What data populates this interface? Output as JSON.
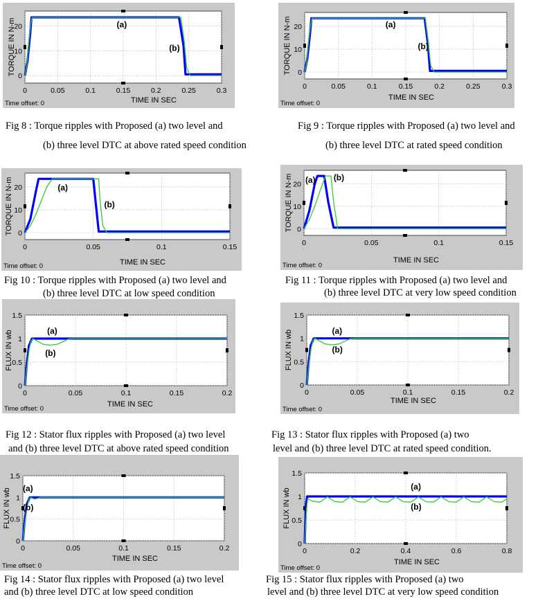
{
  "figures": [
    {
      "id": "fig8",
      "caption_lines": [
        "Fig  8 : Torque ripples with Proposed (a) two level and",
        "(b) three level DTC at  above rated speed condition"
      ],
      "time_offset": "Time offset:  0",
      "chart_data": {
        "type": "line",
        "xlabel": "TIME IN SEC",
        "ylabel": "TORQUE IN N-m",
        "xlim": [
          0,
          0.3
        ],
        "ylim": [
          -3,
          26
        ],
        "xticks": [
          0,
          0.05,
          0.1,
          0.15,
          0.2,
          0.25,
          0.3
        ],
        "xtick_labels": [
          "0",
          "0.05",
          "0.1",
          "0.15",
          "0.2",
          "0.25",
          "0.3"
        ],
        "yticks": [
          0,
          10,
          20
        ],
        "ytick_labels": [
          "0",
          "10",
          "20"
        ],
        "annotations": [
          {
            "text": "(a)",
            "x": 0.14,
            "y": 19.5
          },
          {
            "text": "(b)",
            "x": 0.22,
            "y": 10
          }
        ],
        "series": [
          {
            "label": "(a)",
            "color": "#0000ff",
            "x": [
              0,
              0.004,
              0.008,
              0.01,
              0.235,
              0.242,
              0.245,
              0.3
            ],
            "y": [
              0,
              6,
              17,
              23.5,
              23.5,
              12,
              0.5,
              0.5
            ]
          },
          {
            "label": "(b)",
            "color": "#33cc33",
            "x": [
              0,
              0.003,
              0.006,
              0.009,
              0.011,
              0.238,
              0.243,
              0.247,
              0.252,
              0.3
            ],
            "y": [
              0,
              4,
              14,
              21,
              23.5,
              23.5,
              14,
              3,
              0,
              0
            ]
          }
        ]
      }
    },
    {
      "id": "fig9",
      "caption_lines": [
        "Fig 9 : Torque ripples with Proposed (a) two level and",
        "(b) three level DTC at rated speed condition"
      ],
      "time_offset": "Time offset:  0",
      "chart_data": {
        "type": "line",
        "xlabel": "TIME IN SEC",
        "ylabel": "TORQUE IN N-m",
        "xlim": [
          0,
          0.3
        ],
        "ylim": [
          -3,
          26
        ],
        "xticks": [
          0,
          0.05,
          0.1,
          0.15,
          0.2,
          0.25,
          0.3
        ],
        "xtick_labels": [
          "0",
          "0.05",
          "0.1",
          "0.15",
          "0.2",
          "0.25",
          "0.3"
        ],
        "yticks": [
          0,
          10,
          20
        ],
        "ytick_labels": [
          "0",
          "10",
          "20"
        ],
        "annotations": [
          {
            "text": "(a)",
            "x": 0.12,
            "y": 19.5
          },
          {
            "text": "(b)",
            "x": 0.168,
            "y": 10
          }
        ],
        "series": [
          {
            "label": "(a)",
            "color": "#0000ff",
            "x": [
              0,
              0.004,
              0.008,
              0.01,
              0.178,
              0.183,
              0.186,
              0.3
            ],
            "y": [
              0,
              6,
              17,
              23.5,
              23.5,
              12,
              0.5,
              0.5
            ]
          },
          {
            "label": "(b)",
            "color": "#33cc33",
            "x": [
              0,
              0.003,
              0.006,
              0.009,
              0.011,
              0.179,
              0.183,
              0.187,
              0.192,
              0.3
            ],
            "y": [
              0,
              4,
              14,
              21,
              23.5,
              23.5,
              14,
              3,
              0,
              0
            ]
          }
        ]
      }
    },
    {
      "id": "fig10",
      "caption_lines": [
        "Fig 10 : Torque ripples with Proposed (a) two level and",
        "(b)  three level DTC at low speed condition"
      ],
      "time_offset": "Time offset:  0",
      "chart_data": {
        "type": "line",
        "xlabel": "TIME IN SEC",
        "ylabel": "TORQUE IN N-m",
        "xlim": [
          0,
          0.15
        ],
        "ylim": [
          -3,
          26
        ],
        "xticks": [
          0,
          0.05,
          0.1,
          0.15
        ],
        "xtick_labels": [
          "0",
          "0.05",
          "0.1",
          "0.15"
        ],
        "yticks": [
          0,
          10,
          20
        ],
        "ytick_labels": [
          "0",
          "10",
          "20"
        ],
        "annotations": [
          {
            "text": "(a)",
            "x": 0.024,
            "y": 18.5
          },
          {
            "text": "(b)",
            "x": 0.058,
            "y": 11
          }
        ],
        "series": [
          {
            "label": "(a)",
            "color": "#0000ff",
            "x": [
              0,
              0.004,
              0.008,
              0.01,
              0.05,
              0.052,
              0.054,
              0.15
            ],
            "y": [
              0,
              6,
              18,
              23.5,
              23.5,
              12,
              0.5,
              0.5
            ]
          },
          {
            "label": "(b)",
            "color": "#33cc33",
            "x": [
              0,
              0.004,
              0.008,
              0.012,
              0.016,
              0.02,
              0.054,
              0.055,
              0.057,
              0.06,
              0.15
            ],
            "y": [
              0,
              3,
              8,
              14,
              20,
              23.5,
              23.5,
              14,
              3,
              0,
              0
            ]
          }
        ]
      }
    },
    {
      "id": "fig11",
      "caption_lines": [
        "Fig 11 : Torque ripples with Proposed (a) two level and",
        "(b) three level DTC at very low speed condition"
      ],
      "time_offset": "Time offset:  0",
      "chart_data": {
        "type": "line",
        "xlabel": "TIME IN SEC",
        "ylabel": "TORQUE IN N-m",
        "xlim": [
          0,
          0.15
        ],
        "ylim": [
          -3,
          26
        ],
        "xticks": [
          0,
          0.05,
          0.1,
          0.15
        ],
        "xtick_labels": [
          "0",
          "0.05",
          "0.1",
          "0.15"
        ],
        "yticks": [
          0,
          10,
          20
        ],
        "ytick_labels": [
          "0",
          "10",
          "20"
        ],
        "annotations": [
          {
            "text": "(a)",
            "x": 0.001,
            "y": 20.5
          },
          {
            "text": "(b)",
            "x": 0.022,
            "y": 21.5
          }
        ],
        "series": [
          {
            "label": "(a)",
            "color": "#0000ff",
            "x": [
              0,
              0.004,
              0.008,
              0.01,
              0.015,
              0.018,
              0.022,
              0.15
            ],
            "y": [
              0,
              8,
              20,
              23.5,
              23.5,
              12,
              0.5,
              0.5
            ]
          },
          {
            "label": "(b)",
            "color": "#33cc33",
            "x": [
              0,
              0.004,
              0.008,
              0.012,
              0.016,
              0.02,
              0.022,
              0.025,
              0.15
            ],
            "y": [
              0,
              4,
              10,
              17,
              23.5,
              23.5,
              12,
              0,
              0
            ]
          }
        ]
      }
    },
    {
      "id": "fig12",
      "caption_lines": [
        "Fig 12 :  Stator flux ripples with Proposed (a) two level",
        "and (b) three level DTC at  above rated speed condition"
      ],
      "time_offset": "Time offset:  0",
      "chart_data": {
        "type": "line",
        "xlabel": "TIME IN SEC",
        "ylabel": "FLUX IN wb",
        "xlim": [
          0,
          0.2
        ],
        "ylim": [
          0,
          1.5
        ],
        "xticks": [
          0,
          0.05,
          0.1,
          0.15,
          0.2
        ],
        "xtick_labels": [
          "0",
          "0.05",
          "0.1",
          "0.15",
          "0.2"
        ],
        "yticks": [
          0,
          0.5,
          1,
          1.5
        ],
        "ytick_labels": [
          "0",
          "0.5",
          "1",
          "1.5"
        ],
        "annotations": [
          {
            "text": "(a)",
            "x": 0.022,
            "y": 1.1
          },
          {
            "text": "(b)",
            "x": 0.02,
            "y": 0.63
          }
        ],
        "series": [
          {
            "label": "(a)",
            "color": "#0000ff",
            "x": [
              0,
              0.002,
              0.004,
              0.007,
              0.04,
              0.2
            ],
            "y": [
              0,
              0.5,
              0.85,
              1.0,
              1.0,
              1.0
            ]
          },
          {
            "label": "(b)",
            "color": "#33cc33",
            "x": [
              0,
              0.002,
              0.004,
              0.006,
              0.008,
              0.012,
              0.018,
              0.025,
              0.032,
              0.038,
              0.043,
              0.047,
              0.2
            ],
            "y": [
              0,
              0.4,
              0.75,
              0.95,
              1.0,
              0.95,
              0.88,
              0.86,
              0.88,
              0.94,
              0.99,
              1.0,
              1.0
            ]
          }
        ]
      }
    },
    {
      "id": "fig13",
      "caption_lines": [
        "Fig 13 :  Stator flux ripples with Proposed (a) two",
        "level  and (b) three level DTC at   rated speed condition."
      ],
      "time_offset": "Time offset:  0",
      "chart_data": {
        "type": "line",
        "xlabel": "TIME IN SEC",
        "ylabel": "FLUX IN wb",
        "xlim": [
          0,
          0.2
        ],
        "ylim": [
          0,
          1.5
        ],
        "xticks": [
          0,
          0.05,
          0.1,
          0.15,
          0.2
        ],
        "xtick_labels": [
          "0",
          "0.05",
          "0.1",
          "0.15",
          "0.2"
        ],
        "yticks": [
          0,
          0.5,
          1,
          1.5
        ],
        "ytick_labels": [
          "0",
          "0.5",
          "1",
          "1.5"
        ],
        "annotations": [
          {
            "text": "(a)",
            "x": 0.025,
            "y": 1.1
          },
          {
            "text": "(b)",
            "x": 0.025,
            "y": 0.7
          }
        ],
        "series": [
          {
            "label": "(a)",
            "color": "#0000ff",
            "x": [
              0,
              0.002,
              0.004,
              0.007,
              0.05,
              0.2
            ],
            "y": [
              0,
              0.5,
              0.85,
              1.0,
              1.0,
              1.0
            ]
          },
          {
            "label": "(b)",
            "color": "#33cc33",
            "x": [
              0,
              0.002,
              0.004,
              0.006,
              0.008,
              0.012,
              0.018,
              0.025,
              0.032,
              0.038,
              0.043,
              0.047,
              0.2
            ],
            "y": [
              0,
              0.4,
              0.75,
              0.95,
              1.0,
              0.95,
              0.88,
              0.86,
              0.88,
              0.94,
              0.99,
              1.0,
              1.0
            ]
          }
        ]
      }
    },
    {
      "id": "fig14",
      "caption_lines": [
        "Fig 14 :  Stator  flux ripples with Proposed (a) two level",
        "and  (b) three level DTC at low speed condition"
      ],
      "time_offset": "Time offset:  0",
      "chart_data": {
        "type": "line",
        "xlabel": "TIME IN SEC",
        "ylabel": "FLUX IN wb",
        "xlim": [
          0,
          0.2
        ],
        "ylim": [
          0,
          1.5
        ],
        "xticks": [
          0,
          0.05,
          0.1,
          0.15,
          0.2
        ],
        "xtick_labels": [
          "0",
          "0.05",
          "0.1",
          "0.15",
          "0.2"
        ],
        "yticks": [
          0,
          0.5,
          1,
          1.5
        ],
        "ytick_labels": [
          "0",
          "0.5",
          "1",
          "1.5"
        ],
        "annotations": [
          {
            "text": "(a)",
            "x": 0.0,
            "y": 1.14
          },
          {
            "text": "(b)",
            "x": 0.0,
            "y": 0.7
          }
        ],
        "series": [
          {
            "label": "(a)",
            "color": "#0000ff",
            "x": [
              0,
              0.002,
              0.004,
              0.007,
              0.2
            ],
            "y": [
              0,
              0.5,
              0.85,
              1.0,
              1.0
            ]
          },
          {
            "label": "(b)",
            "color": "#33cc33",
            "x": [
              0,
              0.002,
              0.004,
              0.006,
              0.008,
              0.011,
              0.014,
              0.017,
              0.2
            ],
            "y": [
              0,
              0.4,
              0.75,
              0.95,
              1.0,
              0.96,
              0.97,
              1.0,
              1.0
            ]
          }
        ]
      }
    },
    {
      "id": "fig15",
      "caption_lines": [
        "Fig 15 :  Stator flux ripples with Proposed (a) two",
        "level  and  (b) three level DTC at very low speed  condition"
      ],
      "time_offset": "Time offset:  0",
      "chart_data": {
        "type": "line",
        "xlabel": "TIME IN SEC",
        "ylabel": "FLUX IN wb",
        "xlim": [
          0,
          0.8
        ],
        "ylim": [
          0,
          1.5
        ],
        "xticks": [
          0,
          0.2,
          0.4,
          0.6,
          0.8
        ],
        "xtick_labels": [
          "0",
          "0.2",
          "0.4",
          "0.6",
          "0.8"
        ],
        "yticks": [
          0,
          0.5,
          1,
          1.5
        ],
        "ytick_labels": [
          "0",
          "0.5",
          "1",
          "1.5"
        ],
        "annotations": [
          {
            "text": "(a)",
            "x": 0.42,
            "y": 1.15
          },
          {
            "text": "(b)",
            "x": 0.42,
            "y": 0.72
          }
        ],
        "series": [
          {
            "label": "(a)",
            "color": "#0000ff",
            "x": [
              0,
              0.003,
              0.006,
              0.01,
              0.8
            ],
            "y": [
              0,
              0.5,
              0.85,
              1.0,
              1.0
            ]
          },
          {
            "label": "(b)",
            "color": "#33cc33",
            "x": [
              0,
              0.004,
              0.008,
              0.012,
              0.03,
              0.06,
              0.09,
              0.12,
              0.15,
              0.18,
              0.21,
              0.24,
              0.27,
              0.3,
              0.33,
              0.36,
              0.39,
              0.42,
              0.45,
              0.48,
              0.51,
              0.54,
              0.57,
              0.6,
              0.63,
              0.66,
              0.69,
              0.72,
              0.75,
              0.78,
              0.8
            ],
            "y": [
              0,
              0.4,
              0.75,
              0.95,
              0.9,
              0.88,
              0.99,
              0.89,
              0.88,
              0.99,
              0.89,
              0.88,
              0.99,
              0.89,
              0.88,
              0.99,
              0.89,
              0.88,
              0.99,
              0.89,
              0.88,
              0.99,
              0.89,
              0.88,
              0.99,
              0.89,
              0.88,
              0.99,
              0.89,
              0.88,
              0.95
            ]
          }
        ]
      }
    }
  ]
}
